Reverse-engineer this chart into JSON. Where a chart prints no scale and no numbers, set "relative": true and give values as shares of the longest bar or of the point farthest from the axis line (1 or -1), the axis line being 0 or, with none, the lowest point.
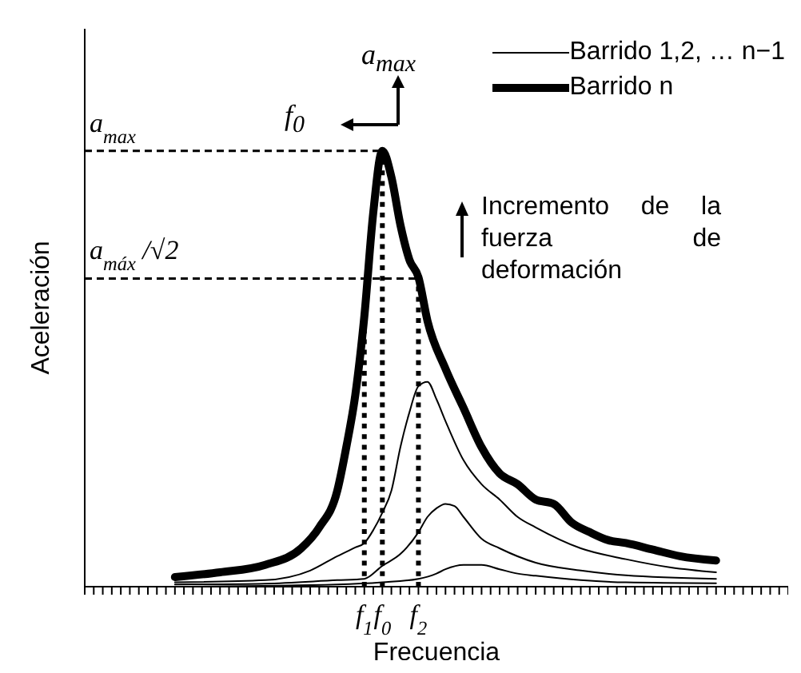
{
  "chart_data": {
    "type": "line",
    "relative": true,
    "xlabel": "Frecuencia",
    "ylabel": "Aceleración",
    "legend": "top right",
    "marker": "none",
    "line_style": "solid",
    "categories": [
      null,
      null,
      null,
      null,
      null,
      null,
      null,
      null,
      null,
      null,
      null,
      null,
      null,
      null,
      null,
      null,
      null,
      null,
      null,
      null,
      null,
      null,
      null,
      null,
      null,
      null,
      null,
      null,
      null,
      null,
      null,
      "f$_{1}$",
      null,
      "f$_{0}$",
      null,
      null,
      null,
      "f$_{2}$",
      null,
      null,
      null,
      null,
      null,
      null,
      null,
      null,
      null,
      null,
      null,
      null,
      null,
      null,
      null,
      null,
      null,
      null,
      null,
      null,
      null,
      null,
      null,
      null,
      null,
      null,
      null,
      null,
      null,
      null,
      null,
      null,
      null,
      null,
      null,
      null,
      null,
      null,
      null,
      null,
      null
    ],
    "series": [
      {
        "name": "Barrido 1,2, … n−1",
        "color": "#000000",
        "values": [
          null,
          null,
          null,
          null,
          null,
          null,
          null,
          null,
          null,
          null,
          0.01,
          null,
          null,
          null,
          null,
          null,
          null,
          null,
          null,
          null,
          0.015,
          null,
          null,
          null,
          null,
          0.037,
          null,
          null,
          0.07,
          null,
          0.09,
          0.1,
          0.13,
          0.17,
          0.22,
          0.32,
          0.4,
          0.46,
          0.47,
          0.43,
          0.38,
          null,
          0.29,
          null,
          0.235,
          null,
          0.2,
          null,
          0.16,
          null,
          0.136,
          null,
          null,
          null,
          null,
          0.088,
          null,
          null,
          null,
          null,
          0.063,
          null,
          null,
          null,
          null,
          0.044,
          null,
          null,
          null,
          null,
          0.033,
          null,
          null,
          null,
          null,
          null,
          null,
          null,
          null
        ]
      },
      {
        "color": "#000000",
        "values": [
          null,
          null,
          null,
          null,
          null,
          null,
          null,
          null,
          null,
          null,
          0.005,
          null,
          null,
          null,
          null,
          null,
          null,
          null,
          null,
          null,
          0.007,
          null,
          null,
          null,
          null,
          null,
          null,
          null,
          0.015,
          null,
          null,
          0.018,
          null,
          0.048,
          null,
          0.075,
          null,
          0.125,
          0.16,
          0.18,
          0.19,
          0.185,
          0.16,
          null,
          0.11,
          null,
          0.088,
          null,
          null,
          null,
          0.055,
          null,
          null,
          null,
          null,
          0.037,
          null,
          null,
          null,
          null,
          0.026,
          null,
          null,
          null,
          null,
          null,
          null,
          null,
          null,
          null,
          0.018,
          null,
          null,
          null,
          null,
          null,
          null,
          null,
          null
        ]
      },
      {
        "color": "#000000",
        "values": [
          null,
          null,
          null,
          null,
          null,
          null,
          null,
          null,
          null,
          null,
          0,
          null,
          null,
          null,
          null,
          null,
          null,
          null,
          null,
          null,
          null,
          null,
          null,
          null,
          null,
          null,
          null,
          null,
          0.005,
          null,
          null,
          null,
          null,
          0.01,
          null,
          null,
          null,
          0.018,
          null,
          0.03,
          0.04,
          null,
          0.05,
          null,
          0.05,
          null,
          0.04,
          null,
          0.03,
          null,
          0.025,
          null,
          null,
          null,
          null,
          0.015,
          null,
          null,
          null,
          null,
          0.01,
          null,
          null,
          null,
          null,
          null,
          null,
          null,
          null,
          null,
          0.008,
          null,
          null,
          null,
          null,
          null,
          null,
          null,
          null
        ]
      },
      {
        "name": "Barrido n",
        "color": "#000000",
        "values": [
          null,
          null,
          null,
          null,
          null,
          null,
          null,
          null,
          null,
          null,
          0.022,
          null,
          null,
          null,
          null,
          0.033,
          null,
          null,
          null,
          null,
          0.05,
          null,
          null,
          null,
          0.088,
          null,
          0.136,
          null,
          0.22,
          0.32,
          0.44,
          0.62,
          0.86,
          1,
          0.94,
          0.83,
          0.75,
          0.71,
          0.61,
          null,
          0.5,
          null,
          0.41,
          null,
          0.32,
          null,
          0.26,
          null,
          0.235,
          null,
          0.2,
          null,
          0.19,
          null,
          0.147,
          null,
          0.125,
          null,
          0.107,
          null,
          0.1,
          null,
          null,
          0.085,
          null,
          null,
          0.07,
          null,
          null,
          null,
          0.06,
          null,
          null,
          null,
          null,
          null,
          null,
          null,
          null
        ]
      }
    ],
    "ref_lines": [
      {
        "axis": "y",
        "value": 1,
        "label": "a$_{max}$",
        "line_style": "dashed",
        "color": "#000000"
      },
      {
        "axis": "y",
        "value": 0.707,
        "label": "a$_{máx}$/√2",
        "line_style": "dashed",
        "color": "#000000"
      },
      {
        "axis": "x",
        "value": "f$_{1}$",
        "line_style": "dotted",
        "color": "#000000"
      },
      {
        "axis": "x",
        "value": "f$_{0}$",
        "line_style": "dotted",
        "color": "#000000"
      },
      {
        "axis": "x",
        "value": "f$_{2}$",
        "line_style": "dotted",
        "color": "#000000"
      }
    ],
    "annotations": [
      "a$_{max}$",
      "f$_{0}$",
      "Incremento de la fuerza de deformación"
    ]
  }
}
